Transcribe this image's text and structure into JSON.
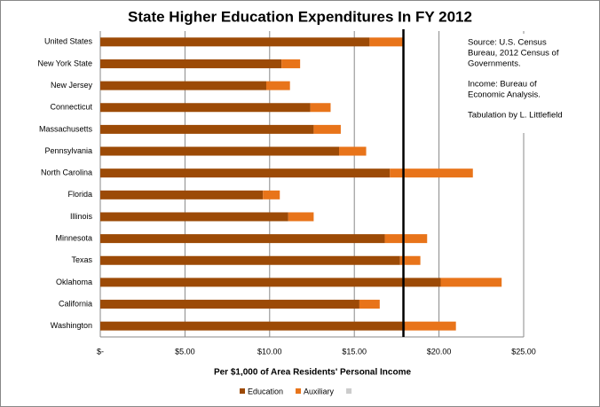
{
  "chart_data": {
    "type": "stacked_barh",
    "title": "State Higher Education Expenditures In FY 2012",
    "x_label": "Per $1,000 of Area Residents' Personal Income",
    "categories": [
      "United States",
      "New York State",
      "New Jersey",
      "Connecticut",
      "Massachusetts",
      "Pennsylvania",
      "North Carolina",
      "Florida",
      "Illinois",
      "Minnesota",
      "Texas",
      "Oklahoma",
      "California",
      "Washington"
    ],
    "series": [
      {
        "name": "Education",
        "color": "#9c4a06",
        "values": [
          15.9,
          10.7,
          9.8,
          12.4,
          12.6,
          14.1,
          17.1,
          9.6,
          11.1,
          16.8,
          17.7,
          20.1,
          15.3,
          18.0
        ]
      },
      {
        "name": "Auxiliary",
        "color": "#e8741a",
        "values": [
          2.0,
          1.1,
          1.4,
          1.2,
          1.6,
          1.6,
          4.9,
          1.0,
          1.5,
          2.5,
          1.2,
          3.6,
          1.2,
          3.0
        ]
      }
    ],
    "reference_line": 17.9,
    "xlim": [
      0,
      25
    ],
    "xticks": [
      {
        "value": 0,
        "label": "$-"
      },
      {
        "value": 5,
        "label": "$5.00"
      },
      {
        "value": 10,
        "label": "$10.00"
      },
      {
        "value": 15,
        "label": "$15.00"
      },
      {
        "value": 20,
        "label": "$20.00"
      },
      {
        "value": 25,
        "label": "$25.00"
      }
    ],
    "grid": true,
    "legend": "bottom",
    "annotation": [
      [
        "Source:  U.S. Census",
        "Bureau, 2012 Census of",
        "Governments."
      ],
      [
        "Income:  Bureau of",
        "Economic Analysis."
      ],
      [
        "Tabulation by L. Littlefield"
      ]
    ]
  }
}
